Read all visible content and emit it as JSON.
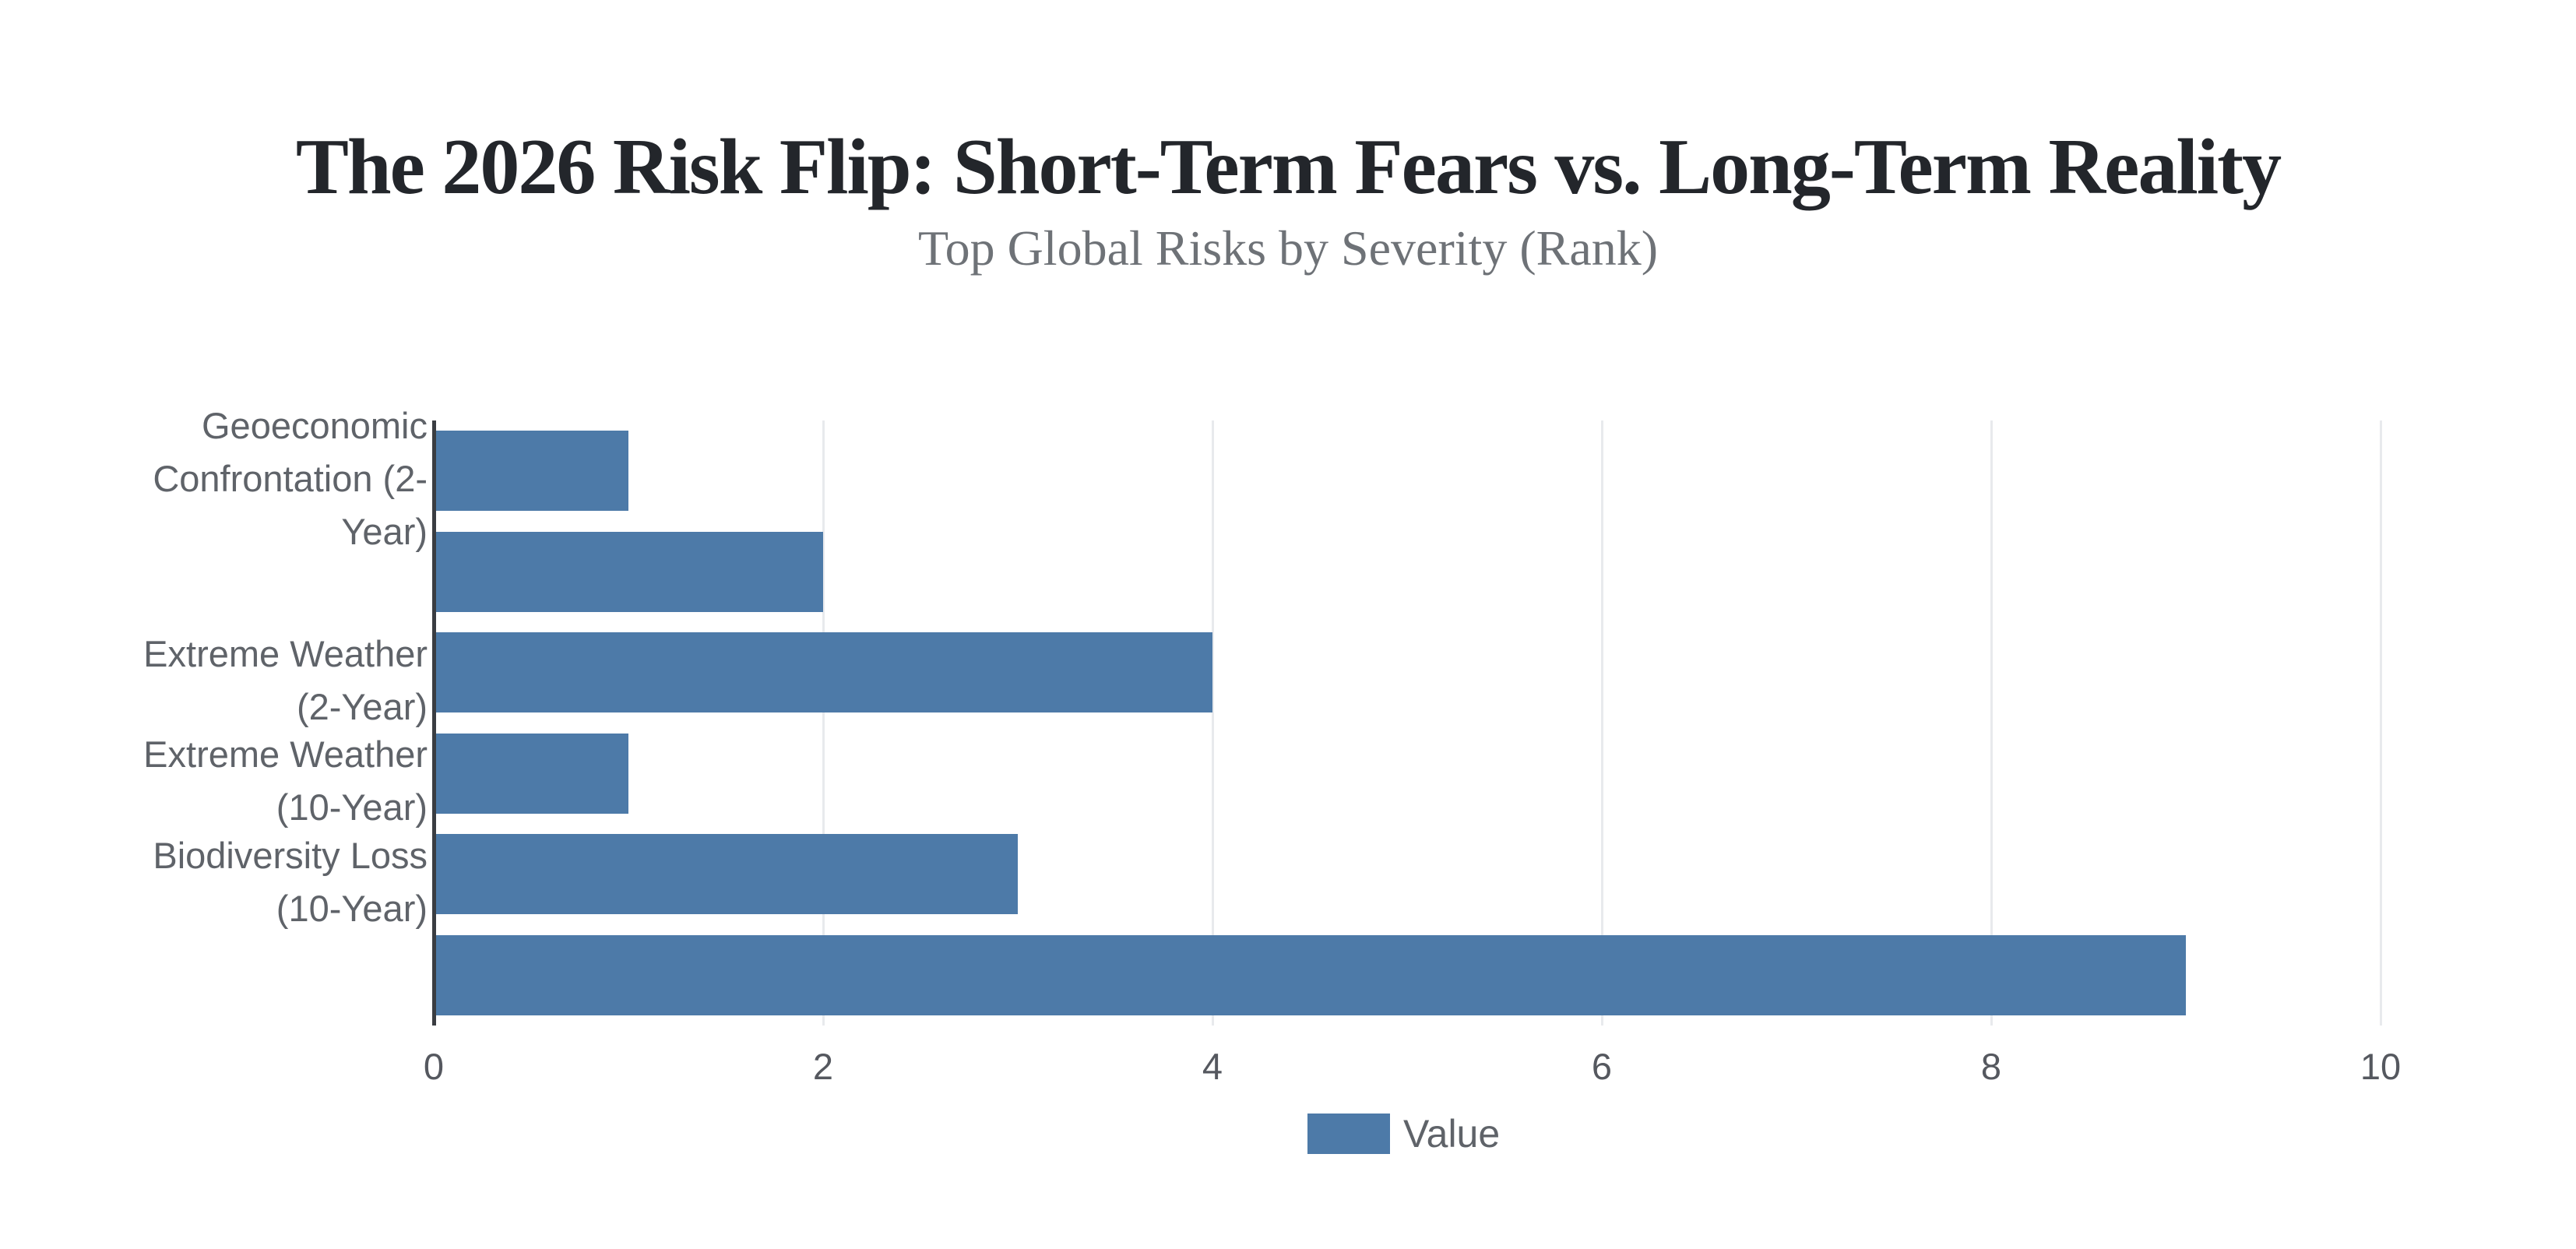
{
  "page": {
    "background": "#ffffff"
  },
  "header": {
    "title": "The 2026 Risk Flip: Short-Term Fears vs. Long-Term Reality",
    "subtitle": "Top Global Risks by Severity (Rank)"
  },
  "legend": {
    "label": "Value",
    "swatch_color": "#4d7aa8"
  },
  "chart_data": {
    "type": "bar",
    "orientation": "horizontal",
    "title": "The 2026 Risk Flip: Short-Term Fears vs. Long-Term Reality",
    "subtitle": "Top Global Risks by Severity (Rank)",
    "series_name": "Value",
    "categories": [
      "Geoeconomic Confrontation (2-Year)",
      "",
      "Extreme Weather (2-Year)",
      "Extreme Weather (10-Year)",
      "Biodiversity Loss (10-Year)",
      ""
    ],
    "category_label_lines": [
      [
        "Geoeconomic",
        "Confrontation (2-",
        "Year)"
      ],
      [],
      [
        "Extreme Weather",
        "(2-Year)"
      ],
      [
        "Extreme Weather",
        "(10-Year)"
      ],
      [
        "Biodiversity Loss",
        "(10-Year)"
      ],
      []
    ],
    "values": [
      1,
      2,
      4,
      1,
      3,
      9
    ],
    "xlim": [
      0,
      10
    ],
    "x_ticks": [
      0,
      2,
      4,
      6,
      8,
      10
    ],
    "grid": true,
    "legend_position": "bottom",
    "style": {
      "bar_color": "#4d7aa8",
      "axis_color": "#3a3d42",
      "grid_color": "#e8eaed",
      "title_color": "#23262b",
      "subtitle_color": "#6e7277",
      "category_label_color": "#5f6369",
      "tick_label_color": "#55585f",
      "legend_text_color": "#5f6369"
    }
  }
}
